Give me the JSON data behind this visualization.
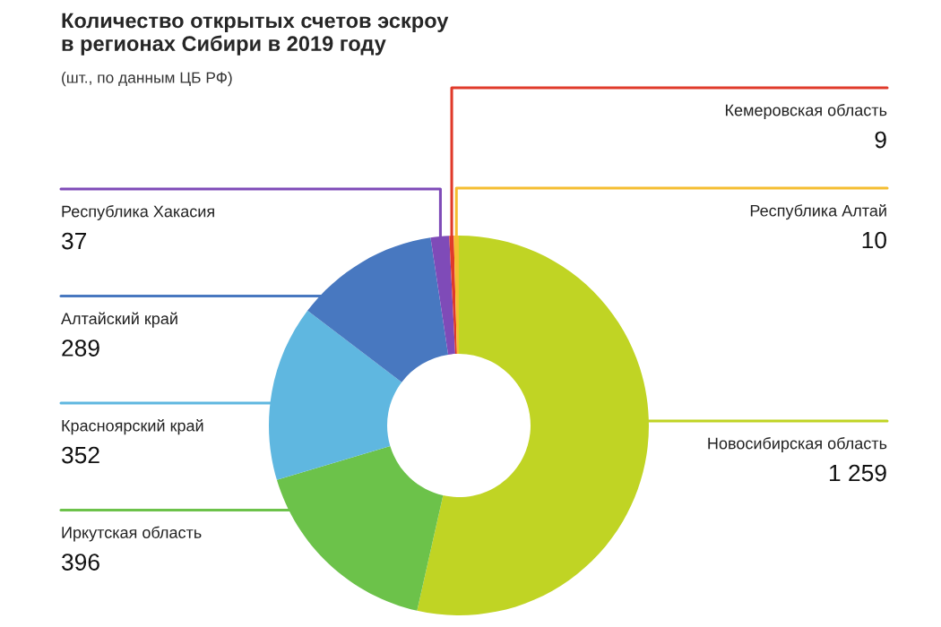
{
  "chart_data": {
    "type": "donut",
    "title": "Количество открытых счетов эскроу\nв регионах Сибири в 2019 году",
    "subtitle": "(шт., по данным ЦБ РФ)",
    "categories": [
      "Новосибирская область",
      "Иркутская область",
      "Красноярский край",
      "Алтайский край",
      "Республика Хакасия",
      "Кемеровская область",
      "Республика Алтай"
    ],
    "values": [
      1259,
      396,
      352,
      289,
      37,
      9,
      10
    ],
    "colors": [
      "#c0d424",
      "#6cc24a",
      "#5fb7e0",
      "#4878c0",
      "#7f4bb8",
      "#e03a2a",
      "#f5bd30"
    ],
    "value_labels": [
      "1 259",
      "396",
      "352",
      "289",
      "37",
      "9",
      "10"
    ]
  }
}
